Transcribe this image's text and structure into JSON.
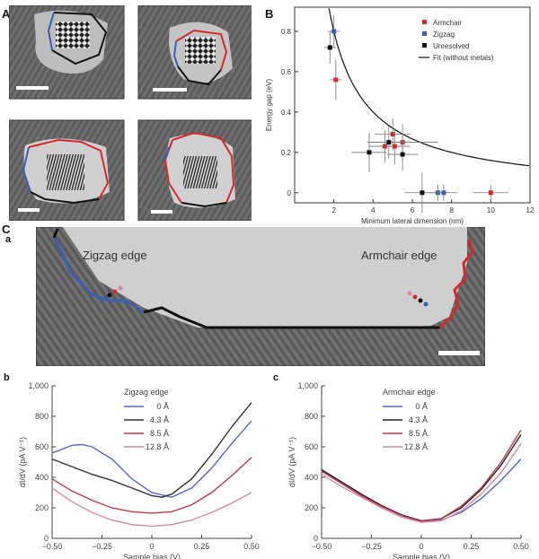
{
  "figure": {
    "panel_letters": {
      "A": "A",
      "B": "B",
      "C": "C",
      "a": "a",
      "b": "b",
      "c": "c"
    },
    "panel_c_stm": {
      "zigzag_label": "Zigzag edge",
      "armchair_label": "Armchair edge"
    }
  },
  "colors": {
    "armchair": "#d22b2b",
    "zigzag": "#3a5fb4",
    "unresolved": "#111111",
    "fit": "#111111"
  },
  "chart_data": [
    {
      "id": "B",
      "type": "scatter",
      "xlabel": "Minimum lateral dimension (nm)",
      "ylabel": "Energy gap (eV)",
      "xlim": [
        0,
        12
      ],
      "ylim": [
        -0.05,
        0.92
      ],
      "xticks": [
        "2",
        "4",
        "6",
        "8",
        "10",
        "12"
      ],
      "yticks": [
        "0",
        "0.2",
        "0.4",
        "0.6",
        "0.8"
      ],
      "legend_position": "top-right",
      "legend": [
        "Armchair",
        "Zigzag",
        "Unresolved",
        "Fit (without metals)"
      ],
      "series": [
        {
          "name": "Armchair",
          "color": "#d22b2b",
          "points": [
            [
              2.1,
              0.56
            ],
            [
              4.6,
              0.23
            ],
            [
              5.0,
              0.29
            ],
            [
              5.5,
              0.25
            ],
            [
              5.1,
              0.23
            ],
            [
              10.0,
              0.0
            ]
          ],
          "xerr": [
            0.3,
            0.8,
            0.9,
            1.8,
            0.8,
            0.9
          ],
          "yerr": [
            0.1,
            0.08,
            0.08,
            0.09,
            0.09,
            0.04
          ]
        },
        {
          "name": "Zigzag",
          "color": "#3a5fb4",
          "points": [
            [
              2.0,
              0.8
            ],
            [
              7.3,
              0.0
            ],
            [
              7.6,
              0.0
            ]
          ],
          "xerr": [
            0.3,
            0.6,
            0.7
          ],
          "yerr": [
            0.08,
            0.04,
            0.04
          ]
        },
        {
          "name": "Unresolved",
          "color": "#111111",
          "points": [
            [
              1.8,
              0.72
            ],
            [
              3.8,
              0.2
            ],
            [
              4.8,
              0.25
            ],
            [
              5.5,
              0.19
            ],
            [
              6.5,
              0.0
            ]
          ],
          "xerr": [
            0.3,
            0.9,
            0.9,
            0.8,
            0.9
          ],
          "yerr": [
            0.08,
            0.1,
            0.08,
            0.08,
            0.1
          ]
        },
        {
          "name": "Fit (without metals)",
          "type": "line",
          "color": "#111111",
          "function": "1.6/x"
        }
      ]
    },
    {
      "id": "b",
      "type": "line",
      "xlabel": "Sample bias (V)",
      "ylabel": "dI/dV (pA V⁻¹)",
      "xlim": [
        -0.5,
        0.5
      ],
      "ylim": [
        0,
        1000
      ],
      "xticks": [
        "−0.50",
        "−0.25",
        "0",
        "0.25",
        "0.50"
      ],
      "yticks": [
        "0",
        "200",
        "400",
        "600",
        "800",
        "1,000"
      ],
      "legend_title": "Zigzag edge",
      "series": [
        {
          "name": "0 Å",
          "color": "#5566c9",
          "x": [
            -0.5,
            -0.4,
            -0.35,
            -0.3,
            -0.2,
            -0.1,
            0.0,
            0.1,
            0.2,
            0.3,
            0.4,
            0.5
          ],
          "y": [
            560,
            610,
            615,
            600,
            520,
            390,
            300,
            270,
            330,
            460,
            620,
            770
          ]
        },
        {
          "name": "4.3 Å",
          "color": "#333333",
          "x": [
            -0.5,
            -0.4,
            -0.3,
            -0.2,
            -0.1,
            0.0,
            0.05,
            0.1,
            0.2,
            0.3,
            0.4,
            0.5
          ],
          "y": [
            520,
            470,
            420,
            380,
            330,
            280,
            270,
            290,
            390,
            550,
            730,
            890
          ]
        },
        {
          "name": "8.5 Å",
          "color": "#c0394a",
          "x": [
            -0.5,
            -0.4,
            -0.3,
            -0.2,
            -0.1,
            0.0,
            0.1,
            0.2,
            0.3,
            0.4,
            0.5
          ],
          "y": [
            390,
            310,
            250,
            200,
            175,
            165,
            175,
            220,
            300,
            410,
            530
          ]
        },
        {
          "name": "12.8 Å",
          "color": "#d48aa6",
          "x": [
            -0.5,
            -0.4,
            -0.3,
            -0.2,
            -0.1,
            0.0,
            0.1,
            0.2,
            0.3,
            0.4,
            0.5
          ],
          "y": [
            330,
            240,
            170,
            120,
            90,
            80,
            90,
            120,
            170,
            230,
            300
          ]
        }
      ]
    },
    {
      "id": "c",
      "type": "line",
      "xlabel": "Sample bias (V)",
      "ylabel": "dI/dV (pA V⁻¹)",
      "xlim": [
        -0.5,
        0.5
      ],
      "ylim": [
        0,
        1000
      ],
      "xticks": [
        "−0.50",
        "−0.25",
        "0",
        "0.25",
        "0.50"
      ],
      "yticks": [
        "0",
        "200",
        "400",
        "600",
        "800",
        "1,000"
      ],
      "legend_title": "Armchair edge",
      "series": [
        {
          "name": "0 Å",
          "color": "#5566c9",
          "x": [
            -0.5,
            -0.4,
            -0.3,
            -0.2,
            -0.1,
            0.0,
            0.1,
            0.2,
            0.3,
            0.4,
            0.5
          ],
          "y": [
            440,
            360,
            280,
            210,
            150,
            110,
            120,
            170,
            260,
            380,
            520
          ]
        },
        {
          "name": "4.3 Å",
          "color": "#222222",
          "x": [
            -0.5,
            -0.4,
            -0.3,
            -0.2,
            -0.1,
            0.0,
            0.1,
            0.2,
            0.3,
            0.4,
            0.5
          ],
          "y": [
            450,
            370,
            290,
            215,
            155,
            115,
            130,
            200,
            320,
            480,
            680
          ]
        },
        {
          "name": "8.5 Å",
          "color": "#c0394a",
          "x": [
            -0.5,
            -0.4,
            -0.3,
            -0.2,
            -0.1,
            0.0,
            0.1,
            0.2,
            0.3,
            0.4,
            0.5
          ],
          "y": [
            440,
            360,
            280,
            210,
            150,
            112,
            130,
            210,
            330,
            500,
            710
          ]
        },
        {
          "name": "12.8 Å",
          "color": "#d48aa6",
          "x": [
            -0.5,
            -0.4,
            -0.3,
            -0.2,
            -0.1,
            0.0,
            0.1,
            0.2,
            0.3,
            0.4,
            0.5
          ],
          "y": [
            420,
            340,
            270,
            200,
            140,
            105,
            115,
            180,
            290,
            430,
            620
          ]
        }
      ]
    }
  ]
}
